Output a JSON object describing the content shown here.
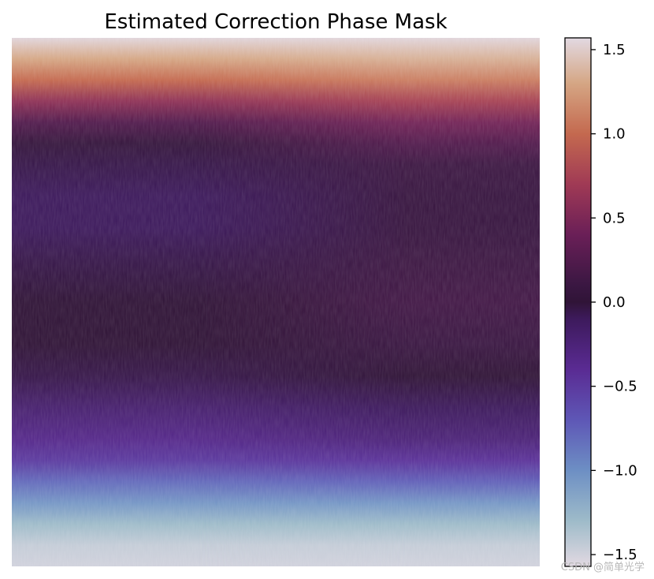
{
  "chart_data": {
    "type": "heatmap",
    "title": "Estimated Correction Phase Mask",
    "xlabel": "",
    "ylabel": "",
    "axes_visible": false,
    "colormap": "twilight_shifted",
    "grid": false,
    "colorbar": {
      "placement": "right",
      "vmin": -1.57,
      "vmax": 1.57,
      "ticks": [
        -1.5,
        -1.0,
        -0.5,
        0.0,
        0.5,
        1.0,
        1.5
      ],
      "tick_labels": [
        "−1.5",
        "−1.0",
        "−0.5",
        "0.0",
        "0.5",
        "1.0",
        "1.5"
      ]
    },
    "row_profile": {
      "row_fraction": [
        0.0,
        0.04,
        0.08,
        0.12,
        0.16,
        0.2,
        0.24,
        0.3,
        0.36,
        0.42,
        0.5,
        0.58,
        0.64,
        0.7,
        0.76,
        0.8,
        0.84,
        0.88,
        0.92,
        0.96,
        1.0
      ],
      "left_value": [
        1.55,
        1.3,
        1.0,
        0.6,
        0.25,
        0.05,
        -0.05,
        -0.1,
        -0.1,
        -0.05,
        0.0,
        0.0,
        -0.05,
        -0.2,
        -0.35,
        -0.5,
        -0.8,
        -1.05,
        -1.3,
        -1.45,
        -1.5
      ],
      "right_value": [
        1.55,
        1.35,
        1.1,
        0.75,
        0.45,
        0.25,
        0.12,
        0.08,
        0.08,
        0.12,
        0.15,
        0.1,
        0.0,
        -0.1,
        -0.25,
        -0.45,
        -0.75,
        -1.05,
        -1.3,
        -1.45,
        -1.5
      ]
    },
    "colormap_stops": [
      {
        "value": -1.57,
        "color": "#e2d9e2"
      },
      {
        "value": -1.3,
        "color": "#9ebbc9"
      },
      {
        "value": -1.0,
        "color": "#6d8fc4"
      },
      {
        "value": -0.7,
        "color": "#5e57b6"
      },
      {
        "value": -0.4,
        "color": "#5a2b93"
      },
      {
        "value": -0.1,
        "color": "#3d1a5c"
      },
      {
        "value": 0.0,
        "color": "#301437"
      },
      {
        "value": 0.1,
        "color": "#3a1742"
      },
      {
        "value": 0.4,
        "color": "#6a1f57"
      },
      {
        "value": 0.7,
        "color": "#a03a55"
      },
      {
        "value": 1.0,
        "color": "#c4694f"
      },
      {
        "value": 1.3,
        "color": "#d5a684"
      },
      {
        "value": 1.57,
        "color": "#e2d9e2"
      }
    ]
  },
  "watermark": {
    "text": "CSDN @简单光学"
  }
}
